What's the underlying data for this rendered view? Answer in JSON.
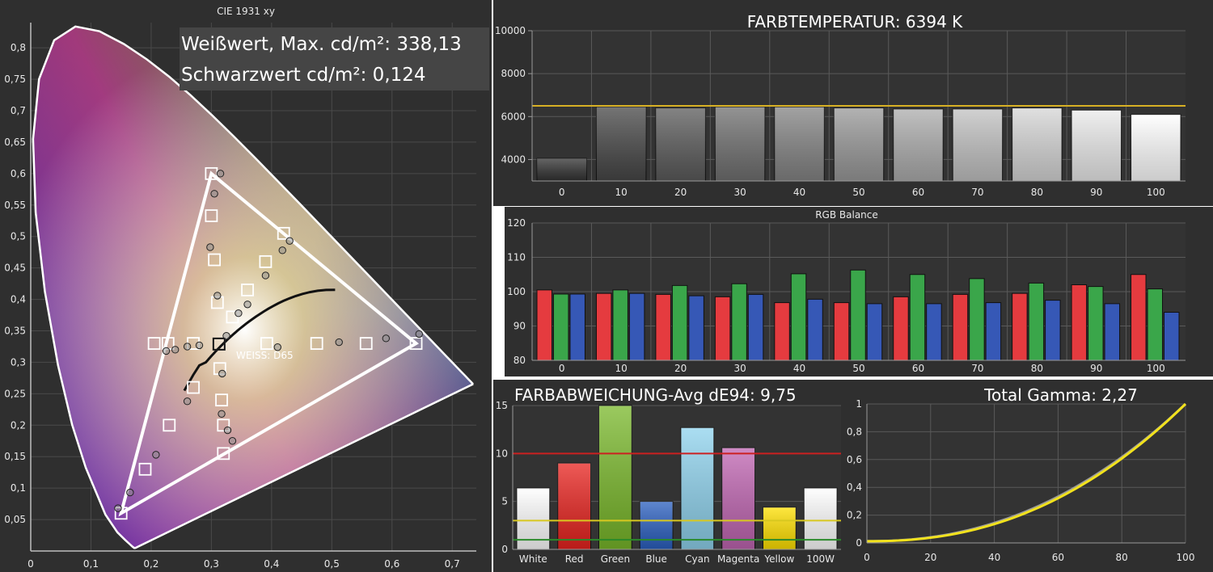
{
  "colors": {
    "background": "#2f2f2f",
    "axis": "#9a9a9a",
    "grid": "#5a5a5a",
    "target": "#d7b024",
    "red": "#e53b3f",
    "green": "#3aa64a",
    "blue": "#3658b6"
  },
  "cie": {
    "title": "CIE 1931 xy",
    "white_label": "Weißwert, Max. cd/m²: 338,13",
    "black_label": "Schwarzwert cd/m²: 0,124",
    "white_point_label": "WEISS: D65"
  },
  "colortemp": {
    "title": "FARBTEMPERATUR: 6394 K"
  },
  "rgb": {
    "title": "RGB Balance"
  },
  "deltae": {
    "title": "FARBABWEICHUNG-Avg dE94: 9,75"
  },
  "gamma": {
    "title": "Total Gamma: 2,27"
  },
  "chart_data": [
    {
      "type": "scatter",
      "title": "CIE 1931 xy",
      "xlim": [
        0,
        0.74
      ],
      "ylim": [
        0,
        0.84
      ],
      "x_ticks": [
        "0",
        "0,1",
        "0,2",
        "0,3",
        "0,4",
        "0,5",
        "0,6",
        "0,7"
      ],
      "y_ticks": [
        "0,05",
        "0,1",
        "0,15",
        "0,2",
        "0,25",
        "0,3",
        "0,35",
        "0,4",
        "0,45",
        "0,5",
        "0,55",
        "0,6",
        "0,65",
        "0,7",
        "0,75",
        "0,8"
      ],
      "target_gamut": {
        "red": [
          0.64,
          0.33
        ],
        "green": [
          0.3,
          0.6
        ],
        "blue": [
          0.15,
          0.06
        ]
      },
      "white_point": [
        0.3127,
        0.329
      ],
      "targets": [
        [
          0.3,
          0.6
        ],
        [
          0.3,
          0.533
        ],
        [
          0.305,
          0.463
        ],
        [
          0.31,
          0.395
        ],
        [
          0.64,
          0.33
        ],
        [
          0.557,
          0.33
        ],
        [
          0.475,
          0.33
        ],
        [
          0.392,
          0.33
        ],
        [
          0.15,
          0.06
        ],
        [
          0.19,
          0.13
        ],
        [
          0.23,
          0.2
        ],
        [
          0.27,
          0.26
        ],
        [
          0.3127,
          0.329
        ],
        [
          0.205,
          0.33
        ],
        [
          0.228,
          0.33
        ],
        [
          0.27,
          0.33
        ],
        [
          0.32,
          0.155
        ],
        [
          0.32,
          0.2
        ],
        [
          0.317,
          0.24
        ],
        [
          0.314,
          0.29
        ],
        [
          0.42,
          0.505
        ],
        [
          0.39,
          0.46
        ],
        [
          0.36,
          0.415
        ],
        [
          0.335,
          0.372
        ]
      ],
      "measurements": [
        [
          0.315,
          0.6
        ],
        [
          0.305,
          0.568
        ],
        [
          0.298,
          0.483
        ],
        [
          0.31,
          0.406
        ],
        [
          0.645,
          0.345
        ],
        [
          0.59,
          0.338
        ],
        [
          0.512,
          0.332
        ],
        [
          0.41,
          0.324
        ],
        [
          0.145,
          0.068
        ],
        [
          0.165,
          0.093
        ],
        [
          0.208,
          0.153
        ],
        [
          0.26,
          0.238
        ],
        [
          0.345,
          0.378
        ],
        [
          0.225,
          0.318
        ],
        [
          0.24,
          0.32
        ],
        [
          0.26,
          0.325
        ],
        [
          0.28,
          0.327
        ],
        [
          0.335,
          0.175
        ],
        [
          0.327,
          0.192
        ],
        [
          0.317,
          0.218
        ],
        [
          0.318,
          0.282
        ],
        [
          0.43,
          0.493
        ],
        [
          0.418,
          0.478
        ],
        [
          0.39,
          0.438
        ],
        [
          0.36,
          0.392
        ],
        [
          0.325,
          0.342
        ]
      ]
    },
    {
      "type": "bar",
      "title": "FARBTEMPERATUR: 6394 K",
      "categories": [
        "0",
        "10",
        "20",
        "30",
        "40",
        "50",
        "60",
        "70",
        "80",
        "90",
        "100"
      ],
      "values": [
        4050,
        6450,
        6400,
        6450,
        6450,
        6400,
        6350,
        6350,
        6400,
        6300,
        6100
      ],
      "target": 6500,
      "ylim": [
        3000,
        10000
      ],
      "y_ticks": [
        "4000",
        "6000",
        "8000",
        "10000"
      ]
    },
    {
      "type": "bar",
      "title": "RGB Balance",
      "categories": [
        "0",
        "10",
        "20",
        "30",
        "40",
        "50",
        "60",
        "70",
        "80",
        "90",
        "100"
      ],
      "ylim": [
        80,
        120
      ],
      "y_ticks": [
        "80",
        "90",
        "100",
        "110",
        "120"
      ],
      "series": [
        {
          "values": [
            100.5,
            99.5,
            99.2,
            98.5,
            96.8,
            96.8,
            98.5,
            99.2,
            99.5,
            102,
            105
          ]
        },
        {
          "values": [
            99.3,
            100.5,
            101.8,
            102.3,
            105.2,
            106.3,
            105,
            103.8,
            102.5,
            101.5,
            100.8
          ]
        },
        {
          "values": [
            99.3,
            99.5,
            98.8,
            99.2,
            97.8,
            96.5,
            96.5,
            96.8,
            97.5,
            96.5,
            94
          ]
        }
      ]
    },
    {
      "type": "bar",
      "title": "FARBABWEICHUNG-Avg dE94: 9,75",
      "categories": [
        "White",
        "Red",
        "Green",
        "Blue",
        "Cyan",
        "Magenta",
        "Yellow",
        "100W"
      ],
      "values": [
        6.4,
        9,
        15,
        5,
        12.7,
        10.6,
        4.4,
        6.4
      ],
      "ylim": [
        0,
        15
      ],
      "y_ticks": [
        "0",
        "5",
        "10",
        "15"
      ],
      "thresholds": [
        10,
        3,
        1
      ]
    },
    {
      "type": "line",
      "title": "Total Gamma: 2,27",
      "xlim": [
        0,
        100
      ],
      "ylim": [
        0,
        1
      ],
      "x_ticks": [
        "0",
        "20",
        "40",
        "60",
        "80",
        "100"
      ],
      "y_ticks": [
        "0",
        "0,2",
        "0,4",
        "0,6",
        "0,8",
        "1"
      ],
      "gamma_target": 2.2,
      "gamma_measured": 2.27
    }
  ]
}
